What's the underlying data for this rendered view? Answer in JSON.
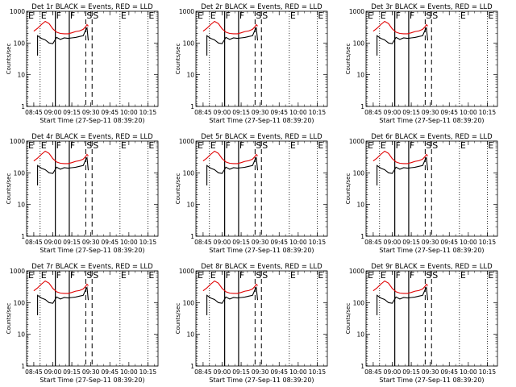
{
  "chart_data": {
    "type": "line",
    "y_scale": "log",
    "ylim": [
      1,
      1000
    ],
    "ylabel": "Counts/sec",
    "xlabel": "Start Time (27-Sep-11 08:39:20)",
    "x_tick_labels": [
      "08:45",
      "09:00",
      "09:15",
      "09:30",
      "09:45",
      "10:00",
      "10:15"
    ],
    "y_tick_labels": [
      "1",
      "10",
      "100",
      "1000"
    ],
    "y_ticks": [
      1,
      10,
      100,
      1000
    ],
    "series_colors": {
      "events": "#000000",
      "lld": "#e00000"
    },
    "markers": [
      {
        "label": "E",
        "x": "08:40",
        "style": "dotted"
      },
      {
        "label": "E",
        "x": "08:50",
        "style": "dotted"
      },
      {
        "label": "F",
        "x": "09:02",
        "style": "solid"
      },
      {
        "label": "F",
        "x": "09:13",
        "style": "solid"
      },
      {
        "label": "S",
        "x": "09:26",
        "style": "dashed"
      },
      {
        "label": "S",
        "x": "09:31",
        "style": "dashed"
      },
      {
        "label": "E",
        "x": "09:53",
        "style": "dotted"
      },
      {
        "label": "E",
        "x": "10:15",
        "style": "dotted"
      }
    ],
    "times": [
      "08:45",
      "08:48",
      "08:51",
      "08:54",
      "08:57",
      "09:00",
      "09:03",
      "09:06",
      "09:09",
      "09:12",
      "09:15",
      "09:18",
      "09:21",
      "09:24",
      "09:26",
      "09:27",
      "09:28"
    ],
    "lld_values": [
      235,
      290,
      380,
      480,
      410,
      280,
      220,
      200,
      195,
      195,
      210,
      230,
      240,
      270,
      330,
      380,
      340
    ],
    "events_values": [
      null,
      170,
      140,
      125,
      100,
      95,
      150,
      130,
      145,
      140,
      145,
      150,
      160,
      170,
      260,
      300,
      120
    ],
    "panels": [
      {
        "title": "Det 1r  BLACK = Events, RED = LLD"
      },
      {
        "title": "Det 2r  BLACK = Events, RED = LLD"
      },
      {
        "title": "Det 3r  BLACK = Events, RED = LLD"
      },
      {
        "title": "Det 4r  BLACK = Events, RED = LLD"
      },
      {
        "title": "Det 5r  BLACK = Events, RED = LLD"
      },
      {
        "title": "Det 6r  BLACK = Events, RED = LLD"
      },
      {
        "title": "Det 7r  BLACK = Events, RED = LLD"
      },
      {
        "title": "Det 8r  BLACK = Events, RED = LLD"
      },
      {
        "title": "Det 9r  BLACK = Events, RED = LLD"
      }
    ]
  }
}
